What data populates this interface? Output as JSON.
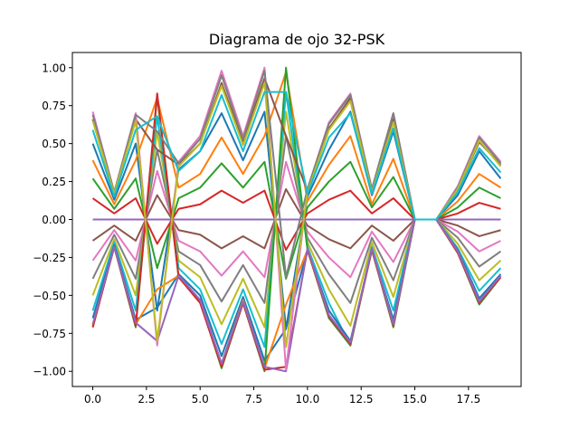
{
  "chart_data": {
    "type": "line",
    "title": "Diagrama de ojo 32-PSK",
    "xlabel": "",
    "ylabel": "",
    "xlim": [
      -0.95,
      19.95
    ],
    "ylim": [
      -1.1,
      1.1
    ],
    "x_ticks": [
      0,
      2.5,
      5,
      7.5,
      10,
      12.5,
      15,
      17.5
    ],
    "x_tick_labels": [
      "0.0",
      "2.5",
      "5.0",
      "7.5",
      "10.0",
      "12.5",
      "15.0",
      "17.5"
    ],
    "y_ticks": [
      -1.0,
      -0.75,
      -0.5,
      -0.25,
      0.0,
      0.25,
      0.5,
      0.75,
      1.0
    ],
    "y_tick_labels": [
      "−1.00",
      "−0.75",
      "−0.50",
      "−0.25",
      "0.00",
      "0.25",
      "0.50",
      "0.75",
      "1.00"
    ],
    "grid": false,
    "legend": false,
    "x": [
      0,
      1,
      2,
      3,
      4,
      5,
      6,
      7,
      8,
      9,
      10,
      11,
      12,
      13,
      14,
      15,
      16,
      17,
      18,
      19
    ],
    "series": [
      {
        "color": "#1f77b4",
        "values": [
          0.5,
          0.13,
          0.5,
          -0.6,
          0.33,
          0.45,
          0.7,
          0.39,
          0.71,
          -0.72,
          0.15,
          0.46,
          0.71,
          0.16,
          0.58,
          0.0,
          0.0,
          0.16,
          0.45,
          0.27
        ]
      },
      {
        "color": "#ff7f0e",
        "values": [
          0.39,
          0.1,
          0.39,
          0.8,
          0.21,
          0.3,
          0.54,
          0.3,
          0.55,
          0.97,
          0.12,
          0.36,
          0.55,
          0.1,
          0.4,
          0.0,
          0.0,
          0.12,
          0.3,
          0.21
        ]
      },
      {
        "color": "#2ca02c",
        "values": [
          0.27,
          0.07,
          0.27,
          -0.32,
          0.14,
          0.21,
          0.37,
          0.21,
          0.38,
          -0.39,
          0.08,
          0.25,
          0.38,
          0.08,
          0.28,
          0.0,
          0.0,
          0.08,
          0.21,
          0.14
        ]
      },
      {
        "color": "#d62728",
        "values": [
          0.14,
          0.04,
          0.14,
          -0.16,
          0.07,
          0.1,
          0.19,
          0.11,
          0.19,
          -0.2,
          0.04,
          0.13,
          0.19,
          0.04,
          0.14,
          0.0,
          0.0,
          0.04,
          0.11,
          0.07
        ]
      },
      {
        "color": "#9467bd",
        "values": [
          0,
          0,
          0,
          0,
          0,
          0,
          0,
          0,
          0,
          0,
          0,
          0,
          0,
          0,
          0,
          0,
          0,
          0,
          0,
          0
        ]
      },
      {
        "color": "#8c564b",
        "values": [
          -0.14,
          -0.04,
          -0.14,
          0.16,
          -0.07,
          -0.1,
          -0.19,
          -0.11,
          -0.19,
          0.2,
          -0.04,
          -0.13,
          -0.19,
          -0.04,
          -0.14,
          0.0,
          0.0,
          -0.04,
          -0.11,
          -0.07
        ]
      },
      {
        "color": "#e377c2",
        "values": [
          -0.27,
          -0.07,
          -0.27,
          0.32,
          -0.14,
          -0.21,
          -0.37,
          -0.21,
          -0.38,
          0.38,
          -0.08,
          -0.25,
          -0.38,
          -0.08,
          -0.28,
          0.0,
          0.0,
          -0.08,
          -0.21,
          -0.14
        ]
      },
      {
        "color": "#7f7f7f",
        "values": [
          -0.39,
          -0.1,
          -0.39,
          0.46,
          -0.21,
          -0.3,
          -0.54,
          -0.3,
          -0.55,
          0.55,
          -0.12,
          -0.36,
          -0.55,
          -0.12,
          -0.4,
          0.0,
          0.0,
          -0.12,
          -0.31,
          -0.21
        ]
      },
      {
        "color": "#bcbd22",
        "values": [
          -0.5,
          -0.13,
          -0.5,
          0.58,
          -0.27,
          -0.38,
          -0.69,
          -0.39,
          -0.71,
          0.71,
          -0.15,
          -0.46,
          -0.7,
          -0.15,
          -0.51,
          0.0,
          0.0,
          -0.16,
          -0.4,
          -0.27
        ]
      },
      {
        "color": "#17becf",
        "values": [
          -0.6,
          -0.15,
          -0.6,
          0.68,
          -0.32,
          -0.46,
          -0.82,
          -0.46,
          -0.84,
          0.84,
          -0.18,
          -0.55,
          -0.83,
          -0.18,
          -0.6,
          0.0,
          0.0,
          -0.19,
          -0.47,
          -0.32
        ]
      },
      {
        "color": "#1f77b4",
        "values": [
          -0.65,
          -0.17,
          -0.66,
          -0.58,
          -0.36,
          -0.5,
          -0.9,
          -0.51,
          -0.93,
          -0.72,
          -0.2,
          -0.6,
          -0.8,
          -0.2,
          -0.66,
          0.0,
          0.0,
          -0.2,
          -0.52,
          -0.36
        ]
      },
      {
        "color": "#ff7f0e",
        "values": [
          -0.7,
          -0.18,
          -0.69,
          -0.46,
          -0.37,
          -0.53,
          -0.95,
          -0.53,
          -0.98,
          -0.56,
          -0.2,
          -0.63,
          -0.82,
          -0.2,
          -0.69,
          0.0,
          0.0,
          -0.21,
          -0.55,
          -0.37
        ]
      },
      {
        "color": "#2ca02c",
        "values": [
          -0.71,
          -0.18,
          -0.71,
          0.81,
          -0.38,
          -0.54,
          -0.98,
          -0.55,
          -1.0,
          1.0,
          -0.2,
          -0.65,
          -0.83,
          -0.2,
          -0.71,
          0.0,
          0.0,
          -0.22,
          -0.56,
          -0.38
        ]
      },
      {
        "color": "#d62728",
        "values": [
          -0.71,
          -0.18,
          -0.7,
          0.83,
          -0.38,
          -0.55,
          -0.97,
          -0.55,
          -0.99,
          -0.97,
          -0.2,
          -0.64,
          -0.82,
          -0.2,
          -0.7,
          0.0,
          0.0,
          -0.22,
          -0.55,
          -0.38
        ]
      },
      {
        "color": "#9467bd",
        "values": [
          -0.69,
          -0.18,
          -0.68,
          -0.8,
          -0.37,
          -0.53,
          -0.95,
          -0.54,
          -0.97,
          -1.0,
          -0.19,
          -0.63,
          -0.81,
          -0.19,
          -0.69,
          0.0,
          0.0,
          -0.21,
          -0.54,
          -0.37
        ]
      },
      {
        "color": "#8c564b",
        "values": [
          0.66,
          0.17,
          0.66,
          0.46,
          0.36,
          0.5,
          0.9,
          0.51,
          0.93,
          0.55,
          0.19,
          0.6,
          0.8,
          0.19,
          0.66,
          0.0,
          0.0,
          0.2,
          0.51,
          0.36
        ]
      },
      {
        "color": "#e377c2",
        "values": [
          0.71,
          0.18,
          0.7,
          -0.83,
          0.38,
          0.55,
          0.98,
          0.55,
          1.0,
          -0.99,
          0.2,
          0.64,
          0.83,
          0.2,
          0.7,
          0.0,
          0.0,
          0.22,
          0.55,
          0.38
        ]
      },
      {
        "color": "#7f7f7f",
        "values": [
          0.69,
          0.18,
          0.69,
          0.58,
          0.37,
          0.53,
          0.95,
          0.53,
          0.98,
          -0.38,
          0.2,
          0.63,
          0.82,
          0.2,
          0.7,
          0.0,
          0.0,
          0.21,
          0.54,
          0.37
        ]
      },
      {
        "color": "#bcbd22",
        "values": [
          0.65,
          0.17,
          0.65,
          -0.8,
          0.35,
          0.5,
          0.88,
          0.49,
          0.9,
          -0.84,
          0.18,
          0.59,
          0.78,
          0.18,
          0.64,
          0.0,
          0.0,
          0.2,
          0.52,
          0.35
        ]
      },
      {
        "color": "#17becf",
        "values": [
          0.59,
          0.15,
          0.59,
          0.68,
          0.32,
          0.45,
          0.82,
          0.45,
          0.84,
          0.84,
          0.17,
          0.54,
          0.7,
          0.17,
          0.6,
          0.0,
          0.0,
          0.18,
          0.47,
          0.31
        ]
      }
    ]
  }
}
